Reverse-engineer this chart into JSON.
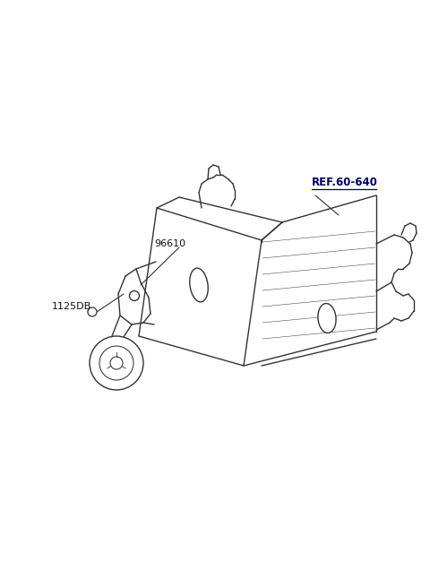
{
  "bg_color": "#ffffff",
  "line_color": "#333333",
  "label_96610": "96610",
  "label_1125DB": "1125DB",
  "label_ref": "REF.60-640",
  "fig_width": 4.8,
  "fig_height": 6.56,
  "dpi": 100
}
